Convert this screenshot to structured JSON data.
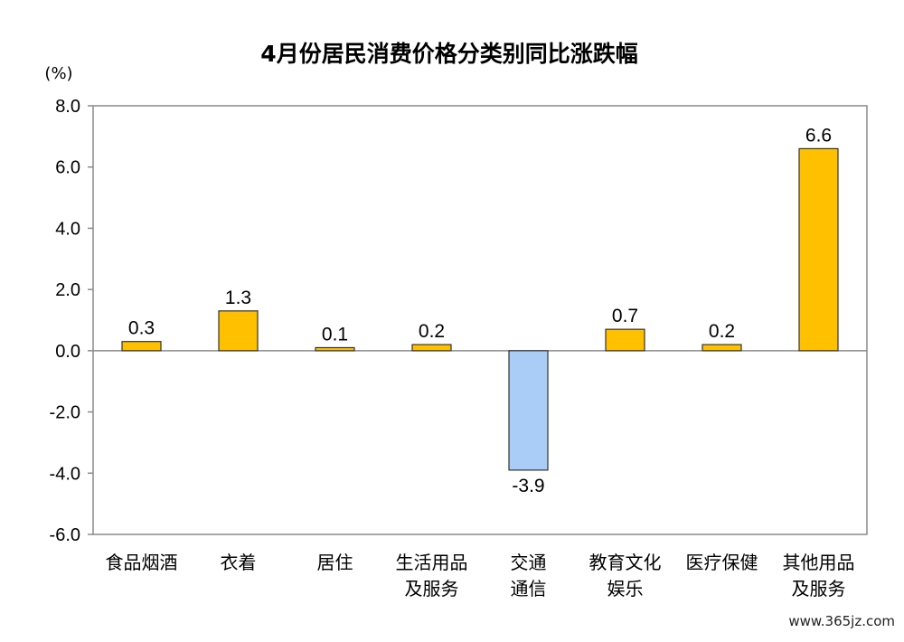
{
  "chart_data": {
    "type": "bar",
    "title": "4月份居民消费价格分类别同比涨跌幅",
    "unit_label": "(%)",
    "categories": [
      [
        "食品烟酒"
      ],
      [
        "衣着"
      ],
      [
        "居住"
      ],
      [
        "生活用品",
        "及服务"
      ],
      [
        "交通",
        "通信"
      ],
      [
        "教育文化",
        "娱乐"
      ],
      [
        "医疗保健"
      ],
      [
        "其他用品",
        "及服务"
      ]
    ],
    "values": [
      0.3,
      1.3,
      0.1,
      0.2,
      -3.9,
      0.7,
      0.2,
      6.6
    ],
    "data_labels": [
      "0.3",
      "1.3",
      "0.1",
      "0.2",
      "-3.9",
      "0.7",
      "0.2",
      "6.6"
    ],
    "ylim": [
      -6.0,
      8.0
    ],
    "yticks": [
      "8.0",
      "6.0",
      "4.0",
      "2.0",
      "0.0",
      "-2.0",
      "-4.0",
      "-6.0"
    ],
    "ytick_values": [
      8,
      6,
      4,
      2,
      0,
      -2,
      -4,
      -6
    ],
    "colors": {
      "positive": "#FFC000",
      "negative": "#A9CDF7",
      "bar_stroke": "#333333",
      "frame": "#8A8A8A"
    },
    "grid": false,
    "legend": "none"
  },
  "watermark": "www.365jz.com"
}
